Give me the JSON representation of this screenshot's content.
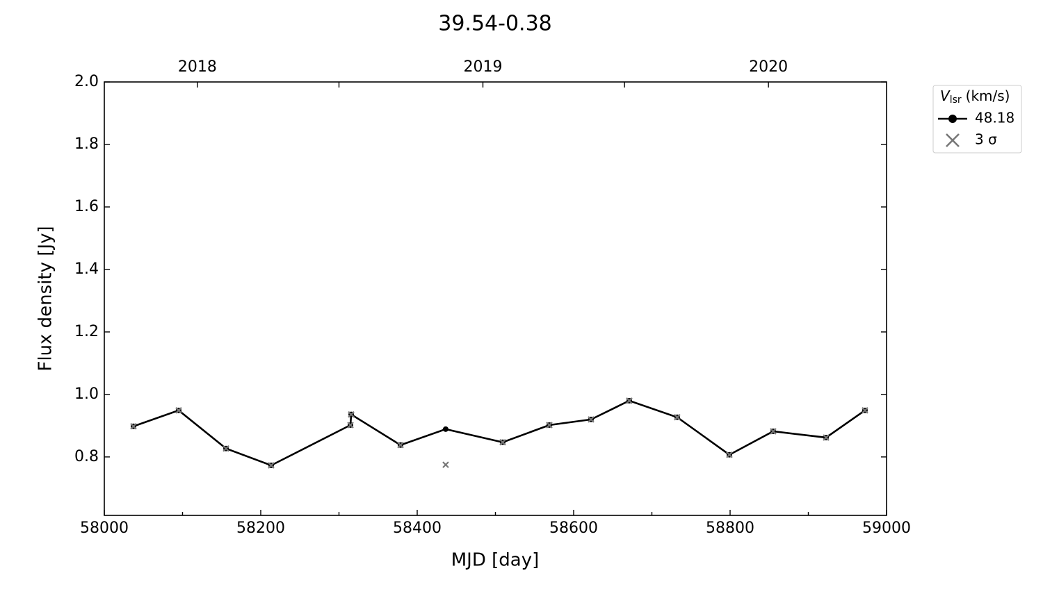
{
  "chart_data": {
    "type": "line",
    "title": "39.54-0.38",
    "xlabel": "MJD [day]",
    "ylabel": "Flux density [Jy]",
    "x": [
      58037.3,
      58095.1,
      58155.6,
      58213.3,
      58314.7,
      58315.6,
      58378.7,
      58436.4,
      58509.3,
      58568.9,
      58622.2,
      58671.1,
      58732.4,
      58799.1,
      58855.1,
      58922.7,
      58972.4
    ],
    "series": [
      {
        "name": "48.18",
        "color": "#000000",
        "marker": "dot",
        "values": [
          0.898,
          0.949,
          0.827,
          0.773,
          0.902,
          0.936,
          0.838,
          0.889,
          0.847,
          0.902,
          0.92,
          0.98,
          0.927,
          0.807,
          0.882,
          0.862,
          0.949
        ]
      },
      {
        "name": "3 σ",
        "color": "#777777",
        "marker": "cross",
        "values": [
          0.898,
          0.949,
          0.827,
          0.773,
          0.902,
          0.936,
          0.838,
          0.775,
          0.847,
          0.902,
          0.92,
          0.98,
          0.927,
          0.807,
          0.882,
          0.862,
          0.949
        ]
      }
    ],
    "xlim": [
      58000,
      59000
    ],
    "xticks": [
      58000,
      58200,
      58400,
      58600,
      58800,
      59000
    ],
    "xminorticks": [
      58100,
      58300,
      58500,
      58700,
      58900
    ],
    "x2ticks": [
      {
        "value": 58119,
        "label": "2018"
      },
      {
        "value": 58484,
        "label": "2019"
      },
      {
        "value": 58849,
        "label": "2020"
      }
    ],
    "x2minorticks": [
      58300,
      58665
    ],
    "ylim": [
      0.613,
      2.0
    ],
    "yticks": [
      {
        "value": 0.8,
        "label": "0.8"
      },
      {
        "value": 1.0,
        "label": "1.0"
      },
      {
        "value": 1.2,
        "label": "1.2"
      },
      {
        "value": 1.4,
        "label": "1.4"
      },
      {
        "value": 1.6,
        "label": "1.6"
      },
      {
        "value": 1.8,
        "label": "1.8"
      },
      {
        "value": 2.0,
        "label": "2.0"
      }
    ],
    "legend_title": {
      "symbol": "V",
      "subscript": "lsr",
      "unit": "(km/s)"
    },
    "legend": "outside-upper-right",
    "grid": false
  }
}
